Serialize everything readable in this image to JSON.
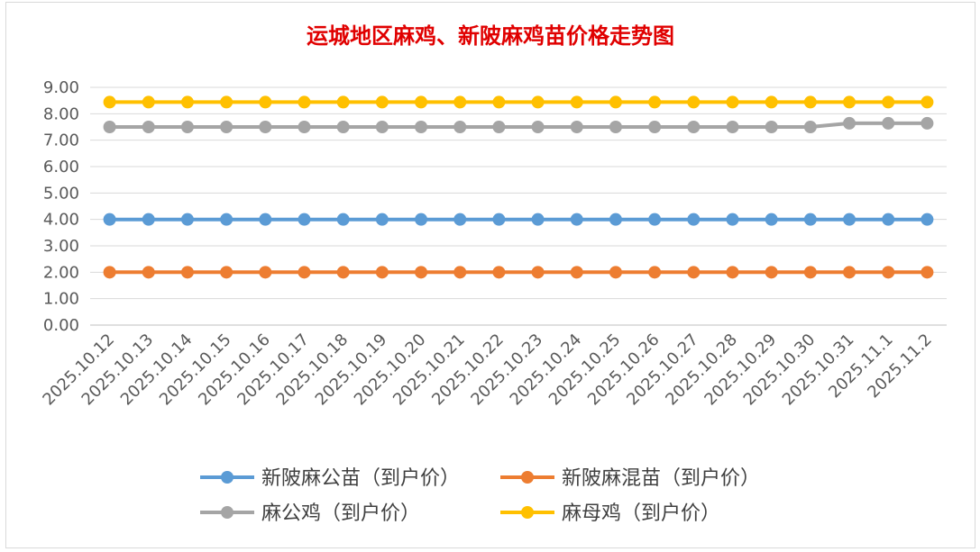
{
  "chart_data": {
    "type": "line",
    "title": "运城地区麻鸡、新陂麻鸡苗价格走势图",
    "xlabel": "",
    "ylabel": "",
    "ylim": [
      0,
      9
    ],
    "y_ticks": [
      "0.00",
      "1.00",
      "2.00",
      "3.00",
      "4.00",
      "5.00",
      "6.00",
      "7.00",
      "8.00",
      "9.00"
    ],
    "grid": true,
    "legend_position": "bottom",
    "categories": [
      "2025.10.12",
      "2025.10.13",
      "2025.10.14",
      "2025.10.15",
      "2025.10.16",
      "2025.10.17",
      "2025.10.18",
      "2025.10.19",
      "2025.10.20",
      "2025.10.21",
      "2025.10.22",
      "2025.10.23",
      "2025.10.24",
      "2025.10.25",
      "2025.10.26",
      "2025.10.27",
      "2025.10.28",
      "2025.10.29",
      "2025.10.30",
      "2025.10.31",
      "2025.11.1",
      "2025.11.2"
    ],
    "series": [
      {
        "name": "新陂麻公苗（到户价）",
        "color": "#5B9BD5",
        "values": [
          4,
          4,
          4,
          4,
          4,
          4,
          4,
          4,
          4,
          4,
          4,
          4,
          4,
          4,
          4,
          4,
          4,
          4,
          4,
          4,
          4,
          4
        ]
      },
      {
        "name": "新陂麻混苗（到户价）",
        "color": "#ED7D31",
        "values": [
          2,
          2,
          2,
          2,
          2,
          2,
          2,
          2,
          2,
          2,
          2,
          2,
          2,
          2,
          2,
          2,
          2,
          2,
          2,
          2,
          2,
          2
        ]
      },
      {
        "name": "麻公鸡（到户价）",
        "color": "#A5A5A5",
        "values": [
          7.5,
          7.5,
          7.5,
          7.5,
          7.5,
          7.5,
          7.5,
          7.5,
          7.5,
          7.5,
          7.5,
          7.5,
          7.5,
          7.5,
          7.5,
          7.5,
          7.5,
          7.5,
          7.5,
          7.64,
          7.64,
          7.64
        ]
      },
      {
        "name": "麻母鸡（到户价）",
        "color": "#FFC000",
        "values": [
          8.44,
          8.44,
          8.44,
          8.44,
          8.44,
          8.44,
          8.44,
          8.44,
          8.44,
          8.44,
          8.44,
          8.44,
          8.44,
          8.44,
          8.44,
          8.44,
          8.44,
          8.44,
          8.44,
          8.44,
          8.44,
          8.44
        ]
      }
    ]
  }
}
